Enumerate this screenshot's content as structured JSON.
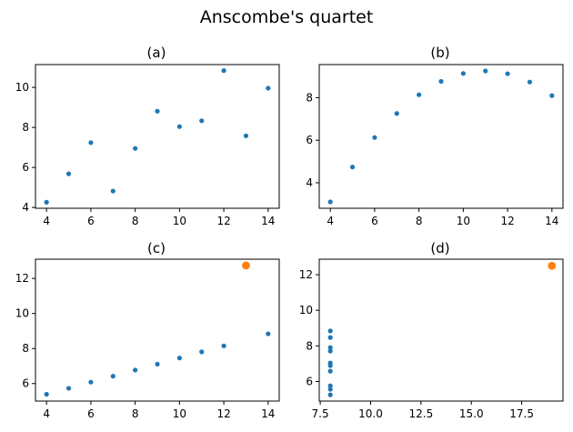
{
  "chart_data": {
    "title": "Anscombe's quartet",
    "panels": [
      {
        "title": "(a)",
        "type": "scatter",
        "xlim": [
          3.5,
          14.5
        ],
        "ylim": [
          3.96,
          11.14
        ],
        "xticks": [
          4,
          6,
          8,
          10,
          12,
          14
        ],
        "yticks": [
          4,
          6,
          8,
          10
        ],
        "x": [
          10,
          8,
          13,
          9,
          11,
          14,
          6,
          4,
          12,
          7,
          5
        ],
        "y": [
          8.04,
          6.95,
          7.58,
          8.81,
          8.33,
          9.96,
          7.24,
          4.26,
          10.84,
          4.82,
          5.68
        ],
        "highlight": null
      },
      {
        "title": "(b)",
        "type": "scatter",
        "xlim": [
          3.5,
          14.5
        ],
        "ylim": [
          2.8,
          9.56
        ],
        "xticks": [
          4,
          6,
          8,
          10,
          12,
          14
        ],
        "yticks": [
          4,
          6,
          8
        ],
        "x": [
          10,
          8,
          13,
          9,
          11,
          14,
          6,
          4,
          12,
          7,
          5
        ],
        "y": [
          9.14,
          8.14,
          8.74,
          8.77,
          9.26,
          8.1,
          6.13,
          3.1,
          9.13,
          7.26,
          4.74
        ],
        "highlight": null
      },
      {
        "title": "(c)",
        "type": "scatter",
        "xlim": [
          3.5,
          14.5
        ],
        "ylim": [
          5.0,
          13.1
        ],
        "xticks": [
          4,
          6,
          8,
          10,
          12,
          14
        ],
        "yticks": [
          6,
          8,
          10,
          12
        ],
        "x": [
          10,
          8,
          9,
          11,
          14,
          6,
          4,
          12,
          7,
          5
        ],
        "y": [
          7.46,
          6.77,
          7.11,
          7.81,
          8.84,
          6.08,
          5.39,
          8.15,
          6.42,
          5.73
        ],
        "highlight": {
          "x": 13,
          "y": 12.74
        }
      },
      {
        "title": "(d)",
        "type": "scatter",
        "xlim": [
          7.45,
          19.55
        ],
        "ylim": [
          4.9,
          12.87
        ],
        "xticks": [
          7.5,
          10.0,
          12.5,
          15.0,
          17.5
        ],
        "yticks": [
          6,
          8,
          10,
          12
        ],
        "x": [
          8,
          8,
          8,
          8,
          8,
          8,
          8,
          8,
          8,
          8
        ],
        "y": [
          6.58,
          5.76,
          7.71,
          8.84,
          8.47,
          7.04,
          5.25,
          5.56,
          7.91,
          6.89
        ],
        "highlight": {
          "x": 19,
          "y": 12.5
        }
      }
    ],
    "colors": {
      "points": "#1f77b4",
      "highlight": "#ff7f0e"
    }
  }
}
